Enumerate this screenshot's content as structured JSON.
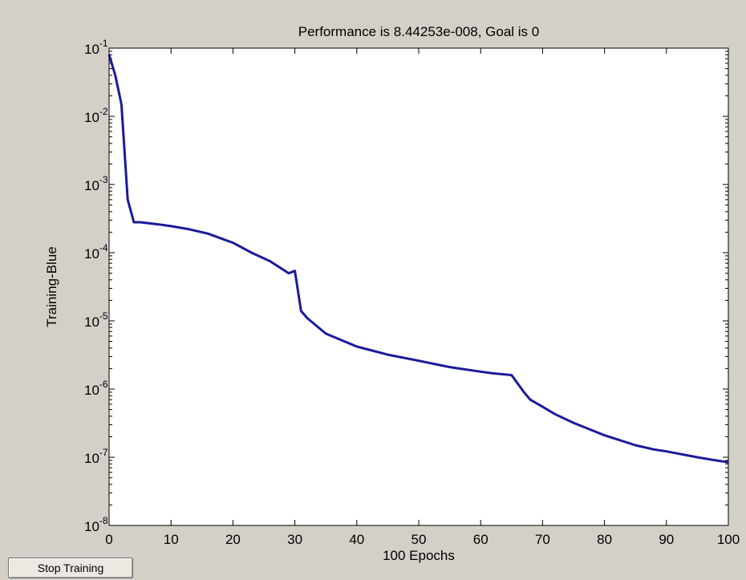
{
  "window": {
    "button_label": "Stop Training"
  },
  "chart_data": {
    "type": "line",
    "title": "Performance is 8.44253e-008, Goal is 0",
    "xlabel": "100 Epochs",
    "ylabel": "Training-Blue",
    "xlim": [
      0,
      100
    ],
    "ylim": [
      1e-08,
      0.1
    ],
    "yscale": "log",
    "grid": false,
    "x_ticks": [
      "0",
      "10",
      "20",
      "30",
      "40",
      "50",
      "60",
      "70",
      "80",
      "90",
      "100"
    ],
    "y_ticks": [
      {
        "base": "10",
        "exp": "-1"
      },
      {
        "base": "10",
        "exp": "-2"
      },
      {
        "base": "10",
        "exp": "-3"
      },
      {
        "base": "10",
        "exp": "-4"
      },
      {
        "base": "10",
        "exp": "-5"
      },
      {
        "base": "10",
        "exp": "-6"
      },
      {
        "base": "10",
        "exp": "-7"
      },
      {
        "base": "10",
        "exp": "-8"
      }
    ],
    "colors": {
      "line": "#1a1a9c",
      "axes_bg": "#ffffff",
      "figure_bg": "#d4d0c8"
    },
    "series": [
      {
        "x": [
          0,
          1,
          2,
          3,
          4,
          5,
          8,
          10,
          13,
          16,
          20,
          23,
          26,
          29,
          30,
          31,
          32,
          35,
          40,
          45,
          50,
          55,
          60,
          62,
          65,
          66,
          67,
          68,
          70,
          72,
          75,
          80,
          85,
          88,
          90,
          95,
          98,
          100
        ],
        "y": [
          0.08,
          0.04,
          0.015,
          0.0006,
          0.00028,
          0.00028,
          0.00026,
          0.000245,
          0.00022,
          0.00019,
          0.00014,
          0.0001,
          7.5e-05,
          5e-05,
          5.4e-05,
          1.4e-05,
          1.1e-05,
          6.5e-06,
          4.2e-06,
          3.2e-06,
          2.6e-06,
          2.1e-06,
          1.8e-06,
          1.7e-06,
          1.6e-06,
          1.2e-06,
          9e-07,
          7e-07,
          5.5e-07,
          4.3e-07,
          3.2e-07,
          2.1e-07,
          1.5e-07,
          1.3e-07,
          1.22e-07,
          1e-07,
          9e-08,
          8.45e-08
        ]
      }
    ]
  }
}
